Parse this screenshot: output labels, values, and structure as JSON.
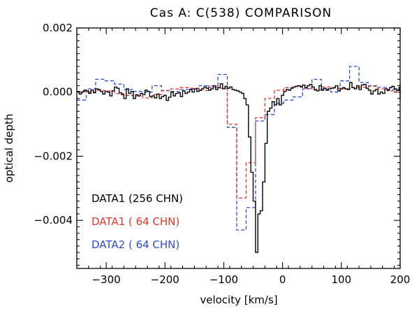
{
  "chart_data": {
    "type": "line",
    "subtype": "step",
    "title": "Cas A: C(538) COMPARISON",
    "xlabel": "velocity [km/s]",
    "ylabel": "optical depth",
    "xlim": [
      -350,
      200
    ],
    "ylim": [
      -0.0055,
      0.002
    ],
    "x_ticks": [
      -300,
      -200,
      -100,
      0,
      100,
      200
    ],
    "x_tick_labels": [
      "−300",
      "−200",
      "−100",
      "0",
      "100",
      "200"
    ],
    "y_ticks": [
      0.002,
      0.0,
      -0.002,
      -0.004
    ],
    "y_tick_labels": [
      "0.002",
      "0.000",
      "−0.002",
      "−0.004"
    ],
    "legend_position": "bottom-left",
    "series": [
      {
        "name": "DATA1 (256 CHN)",
        "color": "#000000",
        "dash": "solid",
        "bin_width": 4,
        "x_start": -350,
        "values": [
          2e-05,
          -6e-05,
          0.0,
          6e-05,
          4e-05,
          -4e-05,
          6e-05,
          -2e-05,
          0.0001,
          8e-05,
          2e-05,
          -6e-05,
          2e-05,
          0.0,
          -0.00012,
          4e-05,
          0.00016,
          0.00012,
          -2e-05,
          -8e-05,
          -0.0002,
          0.0001,
          -4e-05,
          2e-05,
          -0.0002,
          -8e-05,
          -0.00012,
          -4e-05,
          -8e-05,
          6e-05,
          2e-05,
          -0.00014,
          -0.00012,
          -0.00018,
          -6e-05,
          -0.0002,
          -0.00014,
          -0.0001,
          -0.00026,
          -0.00016,
          0.0,
          -0.00012,
          -4e-05,
          -2e-05,
          -0.00014,
          4e-05,
          -4e-05,
          0.0,
          8e-05,
          0.0,
          0.0001,
          2e-05,
          6e-05,
          0.0001,
          0.00016,
          0.00012,
          6e-05,
          0.0001,
          0.0002,
          8e-05,
          0.00014,
          0.00026,
          0.0001,
          0.00018,
          0.00012,
          0.00016,
          8e-05,
          6e-05,
          4e-05,
          0.0,
          -4e-05,
          -0.0002,
          -0.0004,
          -0.0014,
          -0.0025,
          -0.0034,
          -0.005,
          -0.0038,
          -0.0037,
          -0.0028,
          -0.0016,
          -0.0006,
          -0.0005,
          -0.0003,
          -0.0004,
          -0.0002,
          -0.0004,
          -0.0001,
          2e-05,
          8e-05,
          6e-05,
          0.00012,
          0.00016,
          0.00018,
          0.0002,
          0.00016,
          0.00022,
          0.00014,
          0.0002,
          0.00024,
          0.00016,
          8e-05,
          4e-05,
          0.0002,
          6e-05,
          0.00012,
          6e-05,
          0.0001,
          0.00012,
          0.00014,
          0.0002,
          4e-05,
          0.0001,
          0.00014,
          0.0001,
          8e-05,
          0.0003,
          0.00014,
          0.0001,
          0.0002,
          8e-05,
          0.00022,
          0.00024,
          0.00012,
          6e-05,
          -6e-05,
          4e-05,
          8e-05,
          -6e-05,
          0.0,
          -4e-05,
          0.0001,
          6e-05,
          0.00014,
          0.00018,
          0.0001,
          6e-05,
          0.00014,
          0.0002,
          0.00024,
          0.00012,
          2e-05,
          -0.0001,
          -0.0002,
          -2e-05,
          4e-05
        ]
      },
      {
        "name": "DATA1 ( 64 CHN)",
        "color": "#e8352a",
        "dash": "dashed",
        "bin_width": 16,
        "x_start": -350,
        "values": [
          2e-05,
          0.0,
          5e-05,
          4e-05,
          -5e-05,
          -0.0001,
          -0.00012,
          -0.00018,
          -8e-05,
          4e-05,
          0.0001,
          0.00014,
          0.00012,
          5e-05,
          0.0002,
          0.00012,
          -0.001,
          -0.0033,
          -0.0022,
          -0.0008,
          -0.0002,
          6e-05,
          0.00014,
          0.00018,
          0.00012,
          6e-05,
          0.00016,
          0.00012,
          0.0001,
          0.00014,
          0.00015,
          0.00018,
          0.0001,
          4e-05,
          0.0
        ]
      },
      {
        "name": "DATA2 ( 64 CHN)",
        "color": "#2b4ad6",
        "dash": "dashed",
        "bin_width": 16,
        "x_start": -350,
        "values": [
          -0.00025,
          0.0001,
          0.0004,
          0.00035,
          0.00025,
          8e-05,
          2e-05,
          0.0,
          0.0002,
          5e-05,
          2e-05,
          8e-05,
          0.0001,
          0.0002,
          0.00015,
          0.00055,
          -0.0011,
          -0.0043,
          -0.0036,
          -0.0009,
          -0.0007,
          -0.00035,
          -0.00025,
          -0.00015,
          0.0001,
          0.0004,
          0.0001,
          0.0,
          0.00035,
          0.0008,
          0.0003,
          0.0002,
          0.00015,
          8e-05,
          5e-05
        ]
      }
    ]
  }
}
